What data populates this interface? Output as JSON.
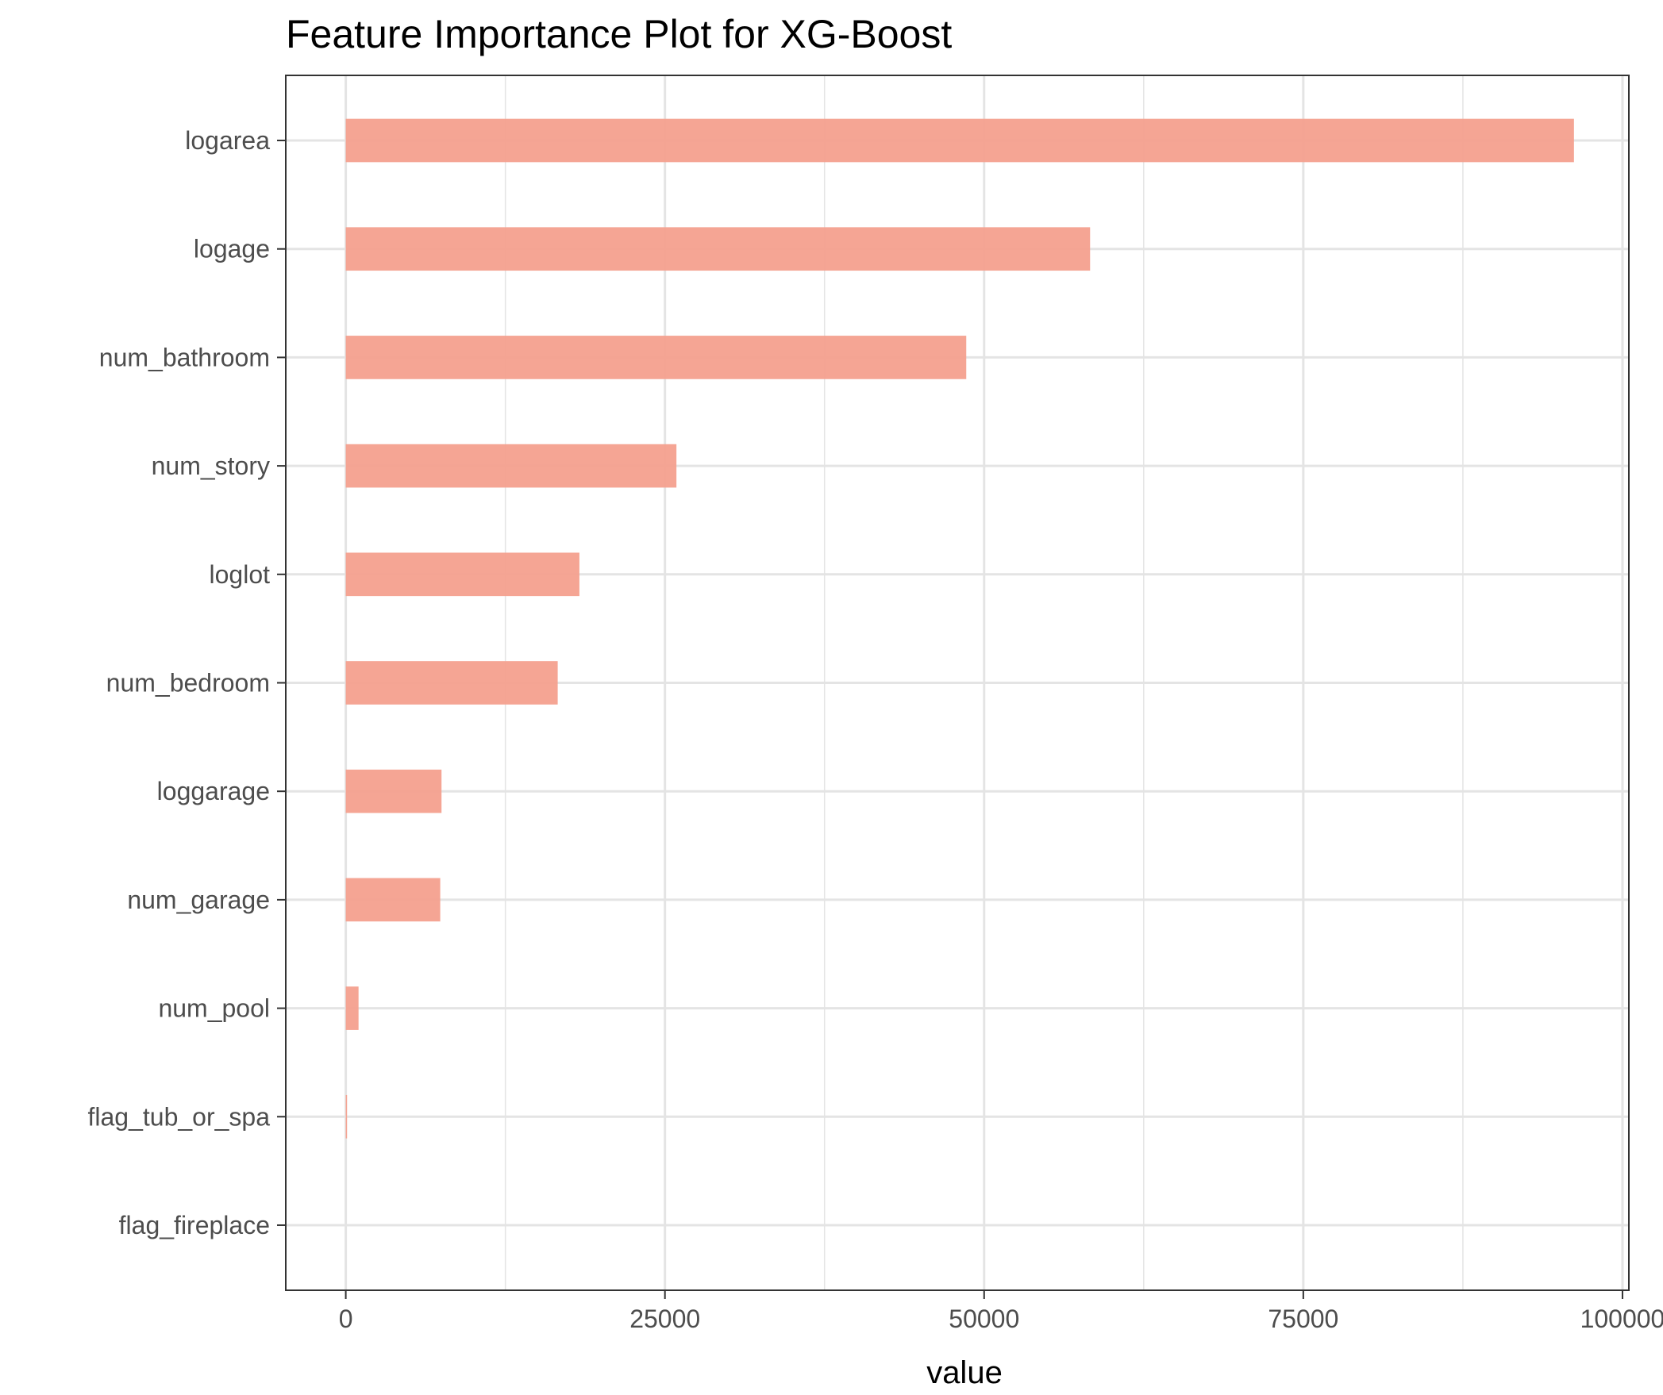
{
  "chart_data": {
    "type": "bar",
    "orientation": "horizontal",
    "title": "Feature Importance Plot for XG-Boost",
    "xlabel": "value",
    "ylabel": "",
    "xlim": [
      -4700,
      100500
    ],
    "x_ticks": [
      0,
      25000,
      50000,
      75000,
      100000
    ],
    "x_tick_labels": [
      "0",
      "25000",
      "50000",
      "75000",
      "100000"
    ],
    "categories": [
      "logarea",
      "logage",
      "num_bathroom",
      "num_story",
      "loglot",
      "num_bedroom",
      "loggarage",
      "num_garage",
      "num_pool",
      "flag_tub_or_spa",
      "flag_fireplace"
    ],
    "values": [
      96200,
      58300,
      48600,
      25900,
      18300,
      16600,
      7500,
      7400,
      1000,
      100,
      0
    ],
    "grid": true,
    "legend": "none",
    "colors": {
      "bar": "#f4a08e",
      "grid": "#e4e4e4",
      "axis": "#333333",
      "tick_text": "#4d4d4d",
      "title_text": "#000000"
    }
  }
}
